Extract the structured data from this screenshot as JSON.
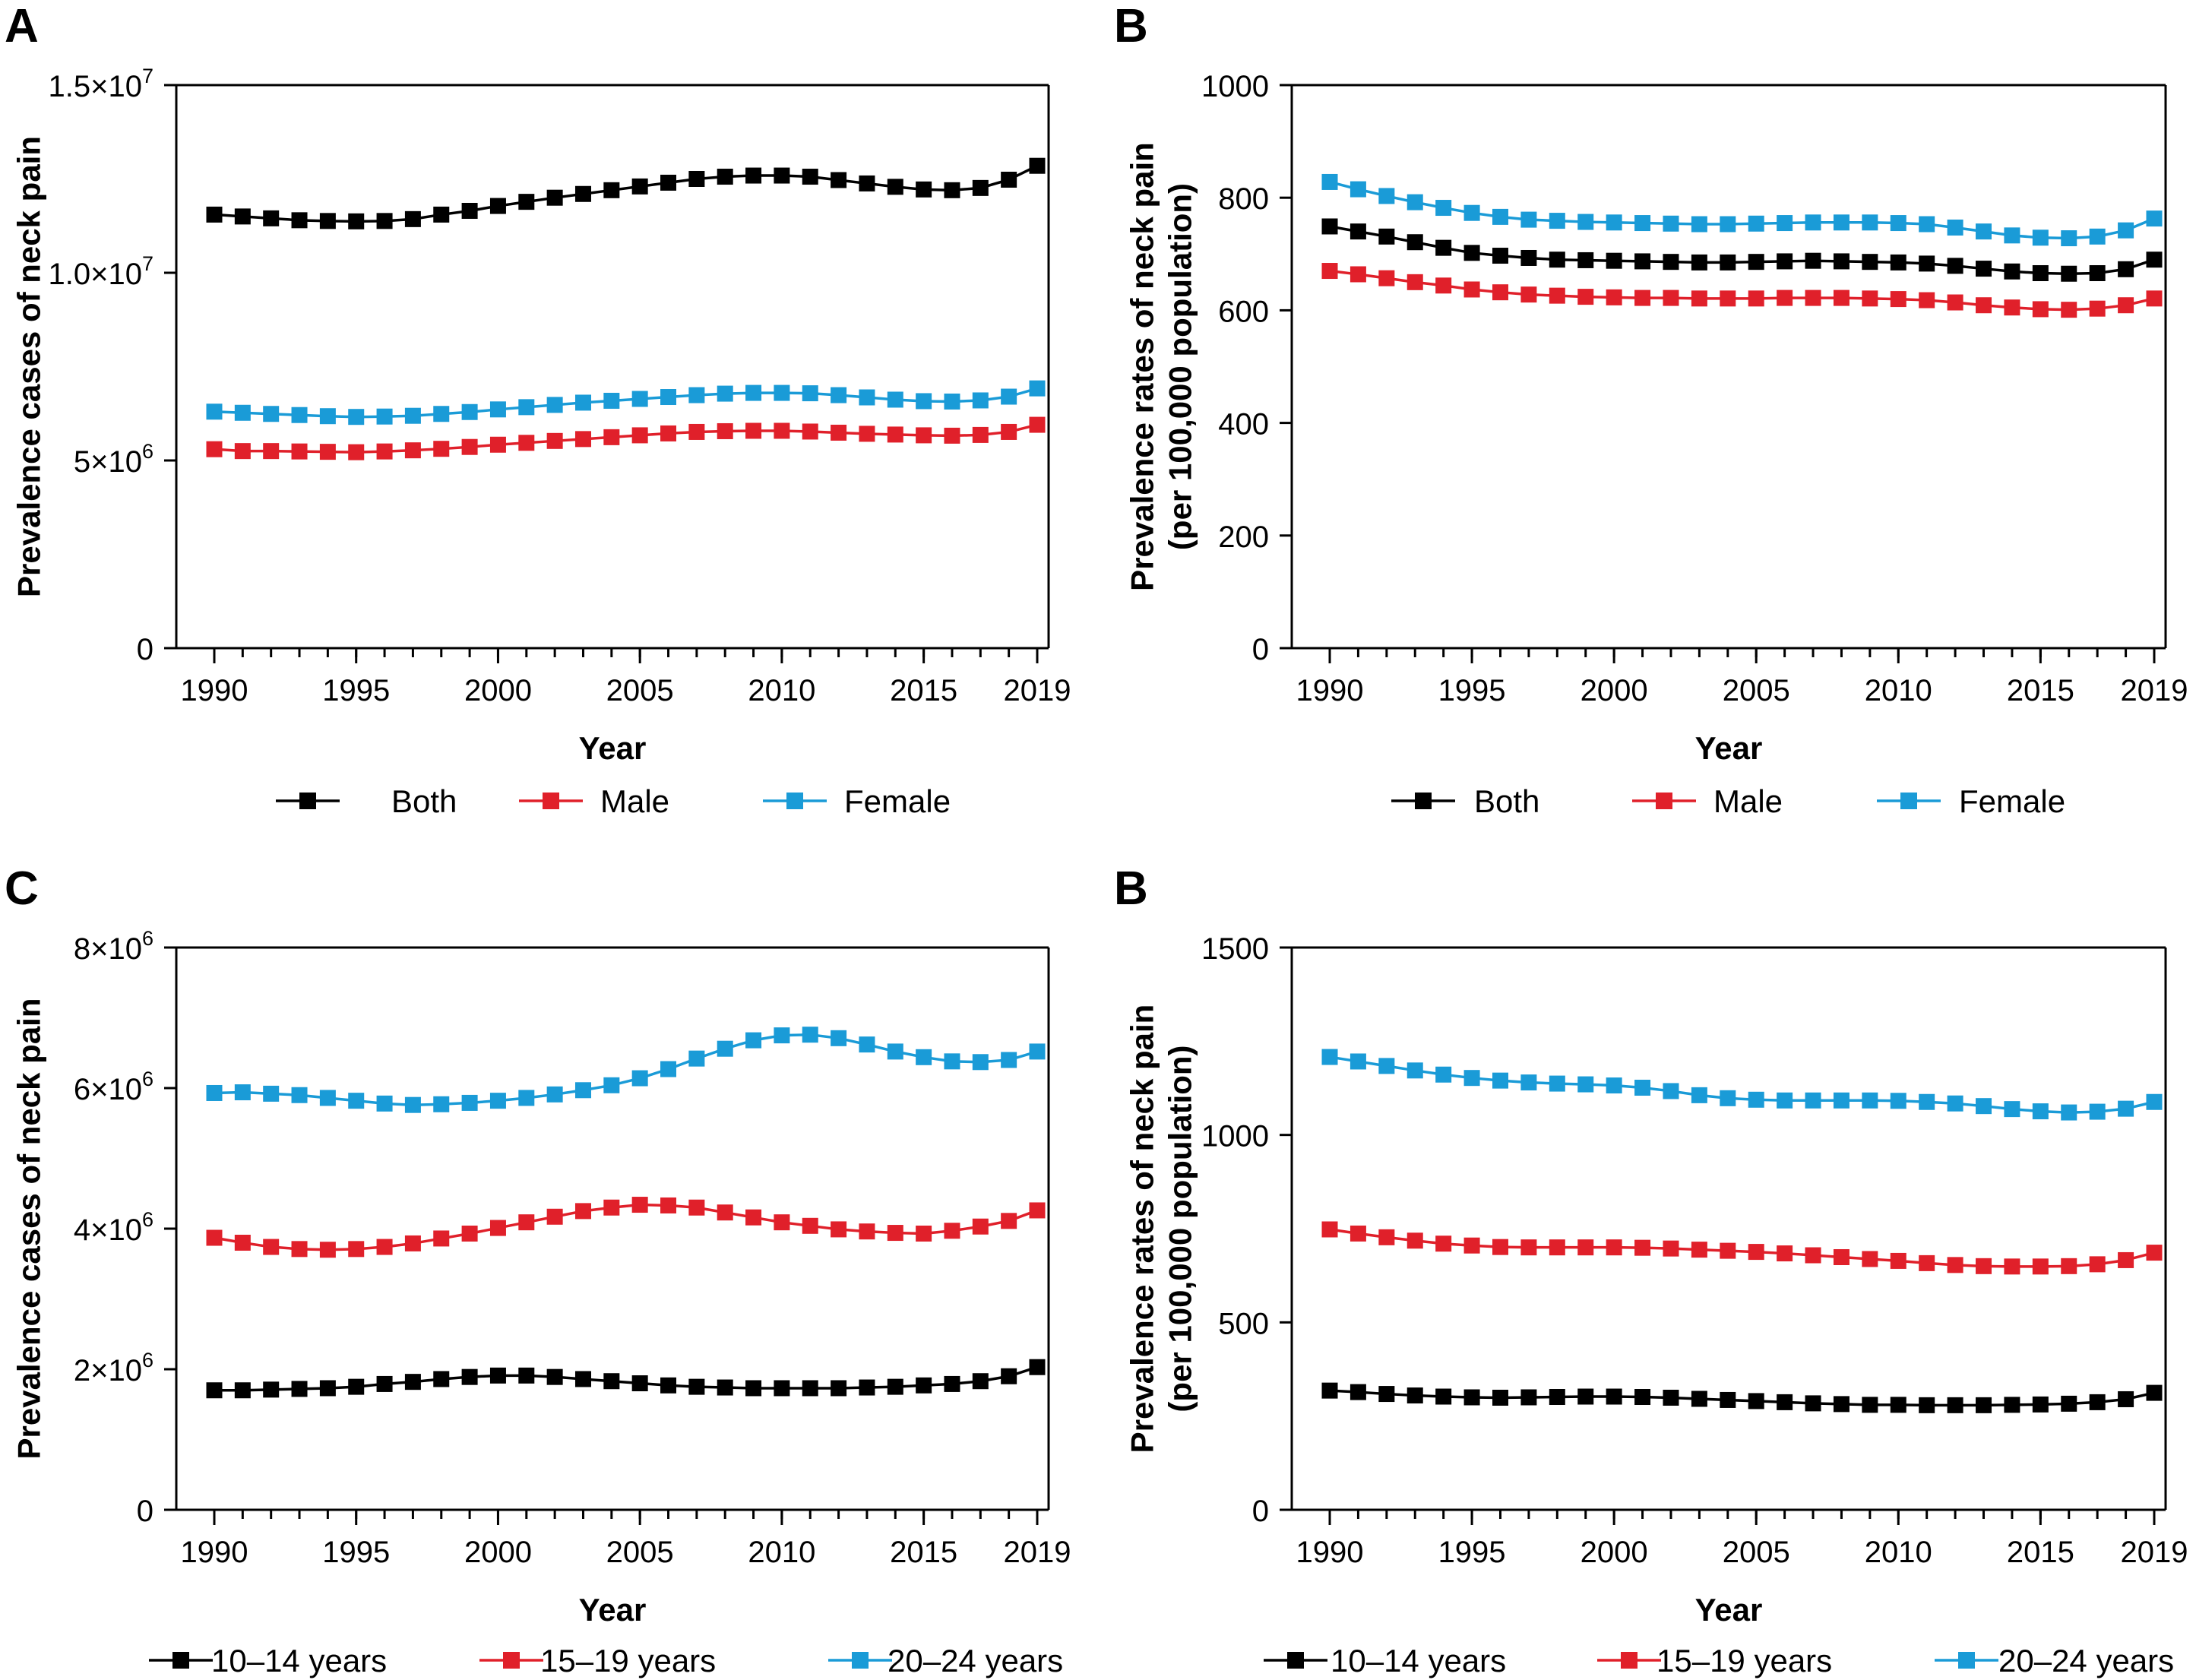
{
  "colors": {
    "black": "#000000",
    "red": "#e0202a",
    "blue": "#1a9bd7"
  },
  "chart_data": [
    {
      "panel_label": "A",
      "type": "line",
      "xlabel": "Year",
      "ylabel": "Prevalence cases of neck pain",
      "ylim": [
        0,
        15000000
      ],
      "xlim": [
        1990,
        2019
      ],
      "yticks": [
        {
          "value": 0,
          "mant": "0",
          "exp": ""
        },
        {
          "value": 5000000,
          "mant": "5×10",
          "exp": "6"
        },
        {
          "value": 10000000,
          "mant": "1.0×10",
          "exp": "7"
        },
        {
          "value": 15000000,
          "mant": "1.5×10",
          "exp": "7"
        }
      ],
      "xticks": [
        1990,
        1995,
        2000,
        2005,
        2010,
        2015,
        2019
      ],
      "grid": false,
      "legend_position": "bottom",
      "x": [
        1990,
        1991,
        1992,
        1993,
        1994,
        1995,
        1996,
        1997,
        1998,
        1999,
        2000,
        2001,
        2002,
        2003,
        2004,
        2005,
        2006,
        2007,
        2008,
        2009,
        2010,
        2011,
        2012,
        2013,
        2014,
        2015,
        2016,
        2017,
        2018,
        2019
      ],
      "series": [
        {
          "name": "Both",
          "color": "#000000",
          "values": [
            11550000,
            11500000,
            11450000,
            11400000,
            11380000,
            11370000,
            11380000,
            11430000,
            11550000,
            11650000,
            11780000,
            11890000,
            12000000,
            12100000,
            12200000,
            12300000,
            12400000,
            12500000,
            12560000,
            12590000,
            12590000,
            12560000,
            12470000,
            12380000,
            12290000,
            12220000,
            12200000,
            12260000,
            12480000,
            12850000
          ]
        },
        {
          "name": "Male",
          "color": "#e0202a",
          "values": [
            5300000,
            5250000,
            5250000,
            5240000,
            5230000,
            5220000,
            5240000,
            5270000,
            5310000,
            5360000,
            5420000,
            5470000,
            5520000,
            5570000,
            5620000,
            5670000,
            5720000,
            5760000,
            5780000,
            5790000,
            5790000,
            5770000,
            5740000,
            5710000,
            5690000,
            5670000,
            5660000,
            5680000,
            5760000,
            5950000
          ]
        },
        {
          "name": "Female",
          "color": "#1a9bd7",
          "values": [
            6300000,
            6270000,
            6240000,
            6210000,
            6180000,
            6160000,
            6170000,
            6190000,
            6240000,
            6290000,
            6360000,
            6420000,
            6480000,
            6540000,
            6590000,
            6640000,
            6690000,
            6740000,
            6780000,
            6800000,
            6800000,
            6790000,
            6740000,
            6680000,
            6620000,
            6580000,
            6570000,
            6600000,
            6700000,
            6920000
          ]
        }
      ]
    },
    {
      "panel_label": "B",
      "type": "line",
      "xlabel": "Year",
      "ylabel_lines": [
        "Prevalence rates of neck pain",
        "(per 100,000 population)"
      ],
      "ylim": [
        0,
        1000
      ],
      "xlim": [
        1990,
        2019
      ],
      "yticks": [
        {
          "value": 0,
          "mant": "0",
          "exp": ""
        },
        {
          "value": 200,
          "mant": "200",
          "exp": ""
        },
        {
          "value": 400,
          "mant": "400",
          "exp": ""
        },
        {
          "value": 600,
          "mant": "600",
          "exp": ""
        },
        {
          "value": 800,
          "mant": "800",
          "exp": ""
        },
        {
          "value": 1000,
          "mant": "1000",
          "exp": ""
        }
      ],
      "xticks": [
        1990,
        1995,
        2000,
        2005,
        2010,
        2015,
        2019
      ],
      "grid": false,
      "legend_position": "bottom",
      "x": [
        1990,
        1991,
        1992,
        1993,
        1994,
        1995,
        1996,
        1997,
        1998,
        1999,
        2000,
        2001,
        2002,
        2003,
        2004,
        2005,
        2006,
        2007,
        2008,
        2009,
        2010,
        2011,
        2012,
        2013,
        2014,
        2015,
        2016,
        2017,
        2018,
        2019
      ],
      "series": [
        {
          "name": "Both",
          "color": "#000000",
          "values": [
            749,
            740,
            731,
            721,
            711,
            702,
            697,
            693,
            690,
            689,
            688,
            687,
            686,
            685,
            685,
            686,
            687,
            688,
            687,
            686,
            685,
            683,
            679,
            674,
            669,
            666,
            665,
            666,
            673,
            690
          ]
        },
        {
          "name": "Male",
          "color": "#e0202a",
          "values": [
            670,
            664,
            657,
            650,
            644,
            637,
            632,
            628,
            626,
            624,
            623,
            622,
            622,
            621,
            621,
            621,
            622,
            622,
            622,
            621,
            620,
            618,
            614,
            609,
            605,
            602,
            601,
            603,
            609,
            621
          ]
        },
        {
          "name": "Female",
          "color": "#1a9bd7",
          "values": [
            828,
            815,
            803,
            792,
            782,
            773,
            766,
            761,
            759,
            757,
            756,
            755,
            754,
            753,
            753,
            754,
            755,
            756,
            756,
            756,
            755,
            753,
            747,
            740,
            733,
            729,
            728,
            731,
            742,
            763
          ]
        }
      ]
    },
    {
      "panel_label": "C",
      "type": "line",
      "xlabel": "Year",
      "ylabel": "Prevalence cases of neck pain",
      "ylim": [
        0,
        8000000
      ],
      "xlim": [
        1990,
        2019
      ],
      "yticks": [
        {
          "value": 0,
          "mant": "0",
          "exp": ""
        },
        {
          "value": 2000000,
          "mant": "2×10",
          "exp": "6"
        },
        {
          "value": 4000000,
          "mant": "4×10",
          "exp": "6"
        },
        {
          "value": 6000000,
          "mant": "6×10",
          "exp": "6"
        },
        {
          "value": 8000000,
          "mant": "8×10",
          "exp": "6"
        }
      ],
      "xticks": [
        1990,
        1995,
        2000,
        2005,
        2010,
        2015,
        2019
      ],
      "grid": false,
      "legend_position": "bottom",
      "x": [
        1990,
        1991,
        1992,
        1993,
        1994,
        1995,
        1996,
        1997,
        1998,
        1999,
        2000,
        2001,
        2002,
        2003,
        2004,
        2005,
        2006,
        2007,
        2008,
        2009,
        2010,
        2011,
        2012,
        2013,
        2014,
        2015,
        2016,
        2017,
        2018,
        2019
      ],
      "series": [
        {
          "name": "10–14 years",
          "color": "#000000",
          "values": [
            1700000,
            1700000,
            1710000,
            1720000,
            1730000,
            1750000,
            1790000,
            1820000,
            1860000,
            1890000,
            1910000,
            1910000,
            1890000,
            1860000,
            1830000,
            1800000,
            1770000,
            1750000,
            1740000,
            1730000,
            1730000,
            1730000,
            1730000,
            1740000,
            1750000,
            1770000,
            1790000,
            1830000,
            1900000,
            2030000
          ]
        },
        {
          "name": "15–19 years",
          "color": "#e0202a",
          "values": [
            3870000,
            3800000,
            3740000,
            3710000,
            3700000,
            3710000,
            3740000,
            3790000,
            3860000,
            3930000,
            4010000,
            4090000,
            4170000,
            4250000,
            4300000,
            4340000,
            4330000,
            4300000,
            4230000,
            4160000,
            4090000,
            4040000,
            3990000,
            3960000,
            3940000,
            3930000,
            3970000,
            4030000,
            4110000,
            4260000
          ]
        },
        {
          "name": "20–24 years",
          "color": "#1a9bd7",
          "values": [
            5930000,
            5940000,
            5920000,
            5900000,
            5860000,
            5820000,
            5780000,
            5760000,
            5770000,
            5790000,
            5820000,
            5860000,
            5910000,
            5970000,
            6040000,
            6140000,
            6270000,
            6420000,
            6560000,
            6680000,
            6750000,
            6760000,
            6710000,
            6620000,
            6520000,
            6440000,
            6380000,
            6370000,
            6400000,
            6520000
          ]
        }
      ]
    },
    {
      "panel_label": "B",
      "type": "line",
      "xlabel": "Year",
      "ylabel_lines": [
        "Prevalence rates of neck pain",
        "(per 100,000 population)"
      ],
      "ylim": [
        0,
        1500
      ],
      "xlim": [
        1990,
        2019
      ],
      "yticks": [
        {
          "value": 0,
          "mant": "0",
          "exp": ""
        },
        {
          "value": 500,
          "mant": "500",
          "exp": ""
        },
        {
          "value": 1000,
          "mant": "1000",
          "exp": ""
        },
        {
          "value": 1500,
          "mant": "1500",
          "exp": ""
        }
      ],
      "xticks": [
        1990,
        1995,
        2000,
        2005,
        2010,
        2015,
        2019
      ],
      "grid": false,
      "legend_position": "bottom",
      "x": [
        1990,
        1991,
        1992,
        1993,
        1994,
        1995,
        1996,
        1997,
        1998,
        1999,
        2000,
        2001,
        2002,
        2003,
        2004,
        2005,
        2006,
        2007,
        2008,
        2009,
        2010,
        2011,
        2012,
        2013,
        2014,
        2015,
        2016,
        2017,
        2018,
        2019
      ],
      "series": [
        {
          "name": "10–14 years",
          "color": "#000000",
          "values": [
            318,
            314,
            309,
            305,
            302,
            300,
            299,
            300,
            301,
            302,
            302,
            301,
            299,
            296,
            293,
            290,
            287,
            284,
            282,
            280,
            280,
            279,
            279,
            279,
            280,
            281,
            283,
            287,
            295,
            312
          ]
        },
        {
          "name": "15–19 years",
          "color": "#e0202a",
          "values": [
            748,
            737,
            727,
            718,
            710,
            705,
            701,
            700,
            700,
            700,
            700,
            699,
            697,
            694,
            691,
            688,
            684,
            679,
            674,
            669,
            664,
            658,
            653,
            650,
            649,
            649,
            650,
            655,
            666,
            686
          ]
        },
        {
          "name": "20–24 years",
          "color": "#1a9bd7",
          "values": [
            1208,
            1196,
            1184,
            1172,
            1161,
            1152,
            1145,
            1140,
            1137,
            1135,
            1132,
            1126,
            1117,
            1106,
            1098,
            1094,
            1092,
            1092,
            1092,
            1092,
            1091,
            1088,
            1084,
            1077,
            1069,
            1063,
            1060,
            1062,
            1070,
            1088
          ]
        }
      ]
    }
  ]
}
